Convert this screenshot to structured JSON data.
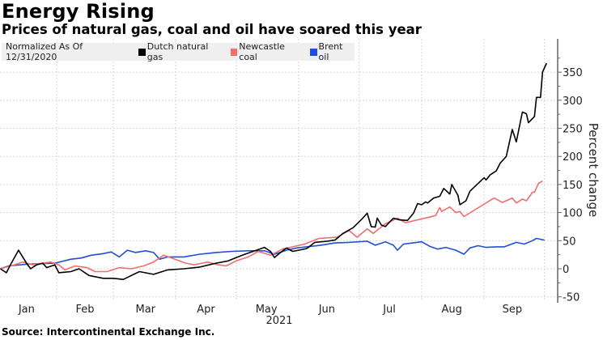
{
  "chart_data": {
    "type": "line",
    "title": "Energy Rising",
    "subtitle": "Prices of natural gas, coal and oil have soared this year",
    "legend_note": "Normalized As Of 12/31/2020",
    "xlabel": "2021",
    "x_units": "days since 12/31/2020",
    "ylabel": "Percent change",
    "ylim": [
      -57,
      408
    ],
    "xlim": [
      2.8,
      276
    ],
    "yticks": [
      -50,
      0,
      50,
      100,
      150,
      200,
      250,
      300,
      350
    ],
    "month_ticks": [
      "Jan",
      "Feb",
      "Mar",
      "Apr",
      "May",
      "Jun",
      "Jul",
      "Aug",
      "Sep"
    ],
    "month_label_days": [
      16,
      45,
      75,
      105,
      135,
      165,
      196,
      227,
      257
    ],
    "month_boundaries": [
      31,
      59,
      90,
      120,
      151,
      181,
      212,
      243,
      273
    ],
    "grid": true,
    "legend_position": "top-left",
    "source": "Source: Intercontinental Exchange Inc.",
    "series": [
      {
        "name": "Dutch natural gas",
        "color": "#000000",
        "points": [
          [
            3,
            0
          ],
          [
            6,
            -7
          ],
          [
            8,
            7
          ],
          [
            12,
            33
          ],
          [
            16,
            10
          ],
          [
            18,
            0
          ],
          [
            21,
            7
          ],
          [
            24,
            10
          ],
          [
            26,
            2
          ],
          [
            30,
            7
          ],
          [
            32,
            -7
          ],
          [
            38,
            -5
          ],
          [
            42,
            0
          ],
          [
            47,
            -12
          ],
          [
            54,
            -17
          ],
          [
            59,
            -17
          ],
          [
            64,
            -19
          ],
          [
            68,
            -12
          ],
          [
            72,
            -5
          ],
          [
            79,
            -10
          ],
          [
            86,
            -2
          ],
          [
            94,
            0
          ],
          [
            102,
            3
          ],
          [
            110,
            10
          ],
          [
            116,
            14
          ],
          [
            123,
            24
          ],
          [
            130,
            33
          ],
          [
            134,
            38
          ],
          [
            137,
            31
          ],
          [
            139,
            20
          ],
          [
            142,
            29
          ],
          [
            145,
            37
          ],
          [
            148,
            31
          ],
          [
            151,
            33
          ],
          [
            155,
            36
          ],
          [
            159,
            47
          ],
          [
            165,
            49
          ],
          [
            169,
            51
          ],
          [
            173,
            63
          ],
          [
            178,
            73
          ],
          [
            182,
            87
          ],
          [
            185,
            99
          ],
          [
            187,
            75
          ],
          [
            189,
            74
          ],
          [
            190,
            90
          ],
          [
            192,
            78
          ],
          [
            194,
            75
          ],
          [
            198,
            90
          ],
          [
            201,
            87
          ],
          [
            205,
            86
          ],
          [
            208,
            99
          ],
          [
            210,
            116
          ],
          [
            212,
            114
          ],
          [
            214,
            119
          ],
          [
            215,
            117
          ],
          [
            218,
            126
          ],
          [
            221,
            129
          ],
          [
            223,
            143
          ],
          [
            226,
            133
          ],
          [
            227,
            150
          ],
          [
            230,
            131
          ],
          [
            231,
            114
          ],
          [
            234,
            121
          ],
          [
            236,
            138
          ],
          [
            243,
            162
          ],
          [
            244,
            158
          ],
          [
            246,
            167
          ],
          [
            249,
            174
          ],
          [
            251,
            188
          ],
          [
            254,
            200
          ],
          [
            257,
            248
          ],
          [
            259,
            226
          ],
          [
            262,
            279
          ],
          [
            264,
            276
          ],
          [
            265,
            260
          ],
          [
            268,
            271
          ],
          [
            269,
            305
          ],
          [
            271,
            305
          ],
          [
            272,
            350
          ],
          [
            274,
            366
          ]
        ]
      },
      {
        "name": "Newcastle coal",
        "color": "#f26d6d",
        "points": [
          [
            3,
            0
          ],
          [
            10,
            7
          ],
          [
            14,
            12
          ],
          [
            19,
            7
          ],
          [
            28,
            12
          ],
          [
            32,
            7
          ],
          [
            35,
            -2
          ],
          [
            40,
            5
          ],
          [
            46,
            2
          ],
          [
            50,
            -5
          ],
          [
            56,
            -5
          ],
          [
            62,
            2
          ],
          [
            68,
            0
          ],
          [
            74,
            5
          ],
          [
            79,
            12
          ],
          [
            84,
            24
          ],
          [
            88,
            19
          ],
          [
            95,
            10
          ],
          [
            99,
            7
          ],
          [
            106,
            12
          ],
          [
            111,
            7
          ],
          [
            115,
            5
          ],
          [
            120,
            14
          ],
          [
            126,
            21
          ],
          [
            131,
            31
          ],
          [
            137,
            24
          ],
          [
            143,
            35
          ],
          [
            154,
            44
          ],
          [
            161,
            54
          ],
          [
            170,
            56
          ],
          [
            176,
            68
          ],
          [
            180,
            56
          ],
          [
            185,
            71
          ],
          [
            188,
            63
          ],
          [
            194,
            80
          ],
          [
            200,
            90
          ],
          [
            204,
            82
          ],
          [
            216,
            92
          ],
          [
            219,
            95
          ],
          [
            221,
            109
          ],
          [
            222,
            102
          ],
          [
            226,
            110
          ],
          [
            229,
            100
          ],
          [
            231,
            102
          ],
          [
            233,
            93
          ],
          [
            248,
            126
          ],
          [
            252,
            118
          ],
          [
            257,
            126
          ],
          [
            259,
            117
          ],
          [
            262,
            124
          ],
          [
            264,
            121
          ],
          [
            267,
            136
          ],
          [
            268,
            136
          ],
          [
            270,
            152
          ],
          [
            272,
            156
          ]
        ]
      },
      {
        "name": "Brent oil",
        "color": "#1f4fd6",
        "points": [
          [
            3,
            0
          ],
          [
            7,
            5
          ],
          [
            16,
            8
          ],
          [
            30,
            10
          ],
          [
            38,
            17
          ],
          [
            43,
            19
          ],
          [
            48,
            24
          ],
          [
            54,
            27
          ],
          [
            58,
            30
          ],
          [
            62,
            21
          ],
          [
            66,
            33
          ],
          [
            70,
            29
          ],
          [
            75,
            32
          ],
          [
            79,
            29
          ],
          [
            82,
            17
          ],
          [
            86,
            21
          ],
          [
            94,
            21
          ],
          [
            102,
            26
          ],
          [
            110,
            29
          ],
          [
            118,
            31
          ],
          [
            126,
            32
          ],
          [
            134,
            32
          ],
          [
            139,
            26
          ],
          [
            145,
            33
          ],
          [
            150,
            37
          ],
          [
            162,
            42
          ],
          [
            169,
            46
          ],
          [
            176,
            47
          ],
          [
            185,
            49
          ],
          [
            189,
            42
          ],
          [
            194,
            48
          ],
          [
            198,
            42
          ],
          [
            200,
            33
          ],
          [
            203,
            44
          ],
          [
            212,
            48
          ],
          [
            216,
            40
          ],
          [
            220,
            35
          ],
          [
            224,
            38
          ],
          [
            229,
            33
          ],
          [
            233,
            26
          ],
          [
            236,
            37
          ],
          [
            240,
            41
          ],
          [
            244,
            38
          ],
          [
            249,
            39
          ],
          [
            253,
            39
          ],
          [
            259,
            47
          ],
          [
            263,
            44
          ],
          [
            267,
            50
          ],
          [
            269,
            54
          ],
          [
            273,
            51
          ]
        ]
      }
    ]
  }
}
